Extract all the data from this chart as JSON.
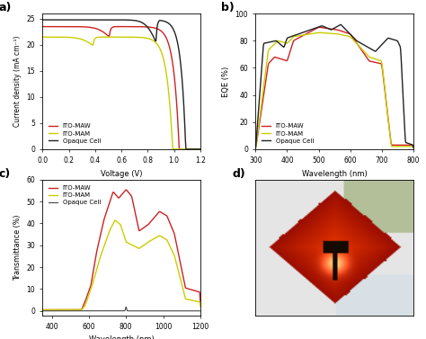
{
  "panel_a": {
    "xlabel": "Voltage (V)",
    "ylabel": "Current density (mA cm⁻¹)",
    "xlim": [
      0.0,
      1.2
    ],
    "ylim": [
      0,
      26
    ],
    "yticks": [
      0,
      5,
      10,
      15,
      20,
      25
    ],
    "xticks": [
      0.0,
      0.2,
      0.4,
      0.6,
      0.8,
      1.0,
      1.2
    ]
  },
  "panel_b": {
    "xlabel": "Wavelength (nm)",
    "ylabel": "EQE (%)",
    "xlim": [
      300,
      800
    ],
    "ylim": [
      0,
      100
    ],
    "yticks": [
      0,
      20,
      40,
      60,
      80,
      100
    ],
    "xticks": [
      300,
      400,
      500,
      600,
      700,
      800
    ]
  },
  "panel_c": {
    "xlabel": "Wavelength (nm)",
    "ylabel": "Transmittance (%)",
    "xlim": [
      350,
      1200
    ],
    "ylim": [
      -2,
      60
    ],
    "yticks": [
      0,
      10,
      20,
      30,
      40,
      50,
      60
    ],
    "xticks": [
      400,
      600,
      800,
      1000,
      1200
    ]
  },
  "colors": {
    "ITO-MAW": "#cc2222",
    "ITO-MAM": "#cccc00",
    "Opaque Cell": "#222222"
  },
  "background": "#ffffff"
}
